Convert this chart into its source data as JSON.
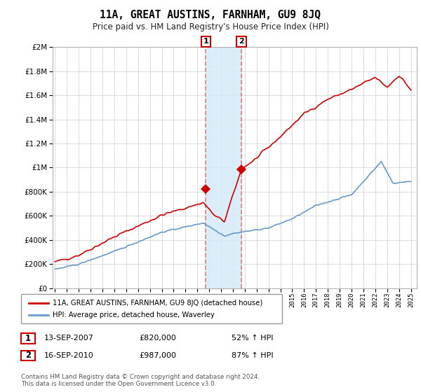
{
  "title": "11A, GREAT AUSTINS, FARNHAM, GU9 8JQ",
  "subtitle": "Price paid vs. HM Land Registry's House Price Index (HPI)",
  "legend_line1": "11A, GREAT AUSTINS, FARNHAM, GU9 8JQ (detached house)",
  "legend_line2": "HPI: Average price, detached house, Waverley",
  "sale1_date": 2007.71,
  "sale1_price": 820000,
  "sale1_label": "1",
  "sale1_text": "13-SEP-2007",
  "sale1_amount": "£820,000",
  "sale1_pct": "52% ↑ HPI",
  "sale2_date": 2010.71,
  "sale2_price": 987000,
  "sale2_label": "2",
  "sale2_text": "16-SEP-2010",
  "sale2_amount": "£987,000",
  "sale2_pct": "87% ↑ HPI",
  "footer": "Contains HM Land Registry data © Crown copyright and database right 2024.\nThis data is licensed under the Open Government Licence v3.0.",
  "red_color": "#cc0000",
  "blue_color": "#6699cc",
  "shade_color": "#d4eaf7",
  "dashed_color": "#e08080",
  "ylim": [
    0,
    2000000
  ],
  "xlim": [
    1994.8,
    2025.5
  ]
}
